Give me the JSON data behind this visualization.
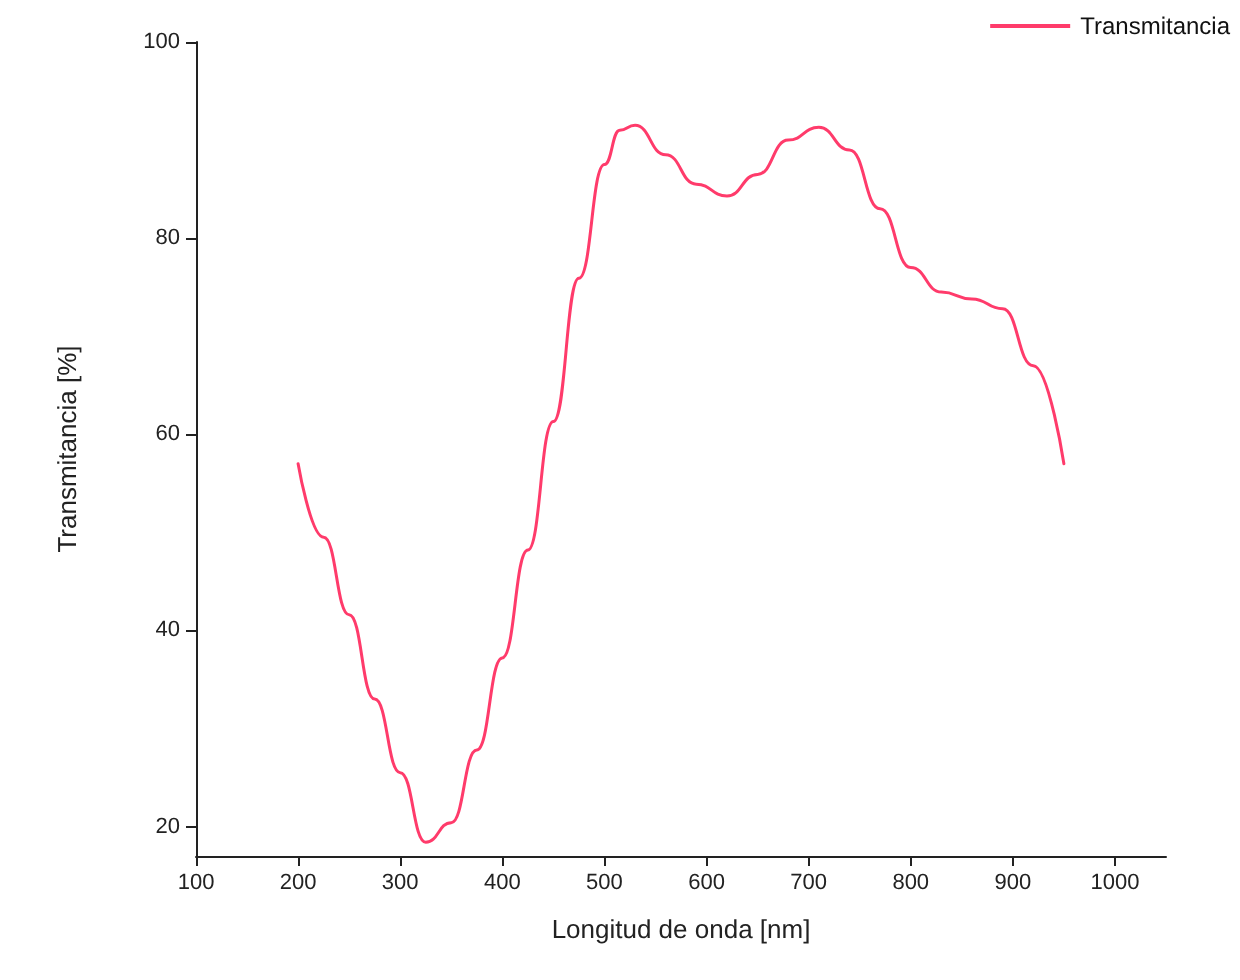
{
  "chart_data": {
    "type": "line",
    "xlabel": "Longitud de onda [nm]",
    "ylabel": "Transmitancia [%]",
    "x": [
      200,
      225,
      250,
      275,
      300,
      325,
      350,
      375,
      400,
      425,
      450,
      475,
      500,
      515,
      530,
      560,
      590,
      620,
      650,
      680,
      710,
      740,
      770,
      800,
      830,
      860,
      890,
      920,
      950
    ],
    "series": [
      {
        "name": "Transmitancia",
        "color": "#ff3b6b",
        "values": [
          57,
          49.5,
          41.6,
          33,
          25.5,
          18.4,
          20.4,
          27.8,
          37.2,
          48.2,
          61.3,
          75.9,
          87.5,
          91,
          91.5,
          88.5,
          85.5,
          84.3,
          86.5,
          90,
          91.3,
          89,
          83,
          77,
          74.5,
          73.8,
          72.8,
          67,
          57
        ]
      }
    ],
    "xlim": [
      100,
      1050
    ],
    "xticks": [
      100,
      200,
      300,
      400,
      500,
      600,
      700,
      800,
      900,
      1000
    ],
    "ylim": [
      17,
      100
    ],
    "yticks": [
      20,
      40,
      60,
      80,
      100
    ],
    "legend": "top right",
    "grid": false,
    "marker": "none",
    "line_style": "solid"
  }
}
